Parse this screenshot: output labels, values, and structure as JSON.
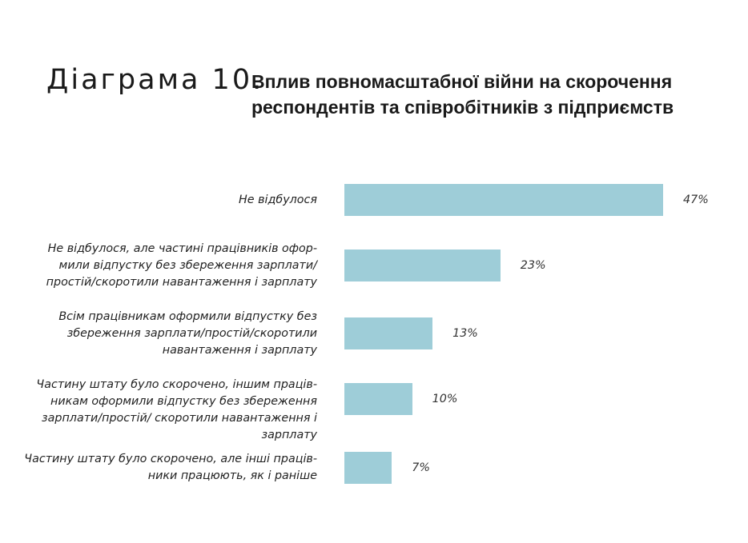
{
  "header": {
    "prefix": "Діаграма 10.",
    "title_line1": "Вплив повномасштабної війни на скорочення",
    "title_line2": "респондентів та співробітників з підприємств"
  },
  "chart_data": {
    "type": "bar",
    "orientation": "horizontal",
    "bar_color": "#9ecdd8",
    "grid": false,
    "legend": "none",
    "xlim": [
      0,
      47
    ],
    "categories": [
      [
        "Не відбулося"
      ],
      [
        "Не відбулося, але частині працівників офор-",
        "мили відпустку без збереження зарплати/",
        "простій/скоротили навантаження і зарплату"
      ],
      [
        "Всім працівникам оформили відпустку без",
        "збереження зарплати/простій/скоротили",
        "навантаження і зарплату"
      ],
      [
        "Частину штату було скорочено, іншим праців-",
        "никам оформили відпустку без збереження",
        "зарплати/простій/ скоротили навантаження і",
        "зарплату"
      ],
      [
        "Частину штату було скорочено, але інші праців-",
        "ники працюють, як і раніше"
      ]
    ],
    "values": [
      47,
      23,
      13,
      10,
      7
    ],
    "value_labels": [
      "47%",
      "23%",
      "13%",
      "10%",
      "7%"
    ]
  }
}
